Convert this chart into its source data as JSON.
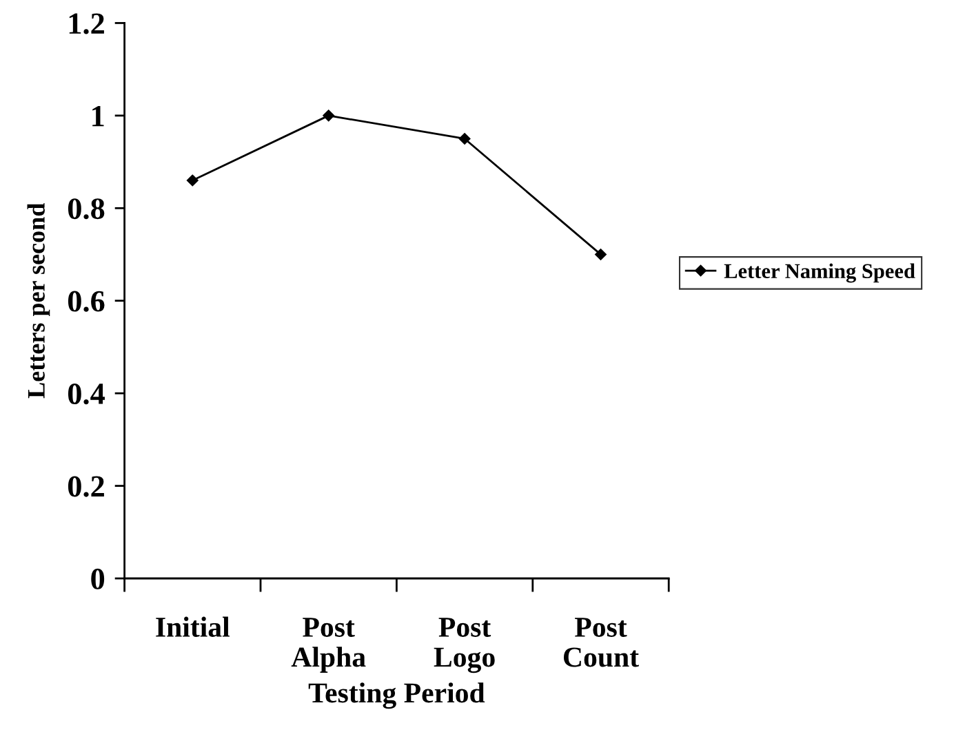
{
  "chart_data": {
    "type": "line",
    "xlabel": "Testing Period",
    "ylabel": "Letters per second",
    "categories": [
      "Initial",
      "Post\nAlpha",
      "Post\nLogo",
      "Post\nCount"
    ],
    "series": [
      {
        "name": "Letter Naming Speed",
        "color": "#000000",
        "values": [
          0.86,
          1.0,
          0.95,
          0.7
        ]
      }
    ],
    "ylim": [
      0,
      1.2
    ],
    "yticks": [
      0,
      0.2,
      0.4,
      0.6,
      0.8,
      1,
      1.2
    ],
    "marker": "diamond",
    "line_style": "solid",
    "legend": "right",
    "grid": false
  }
}
